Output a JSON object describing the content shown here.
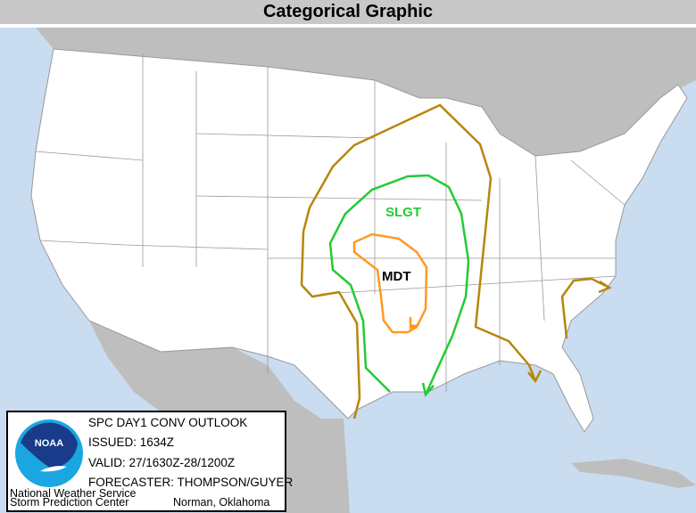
{
  "header": {
    "title": "Categorical Graphic"
  },
  "map": {
    "labels": {
      "slight": "SLGT",
      "moderate": "MDT"
    },
    "colors": {
      "tstm": "#b8860b",
      "slight": "#22cc33",
      "moderate": "#ff9922",
      "water": "#c9dcf0",
      "land": "#ffffff",
      "foreign": "#bebebe"
    }
  },
  "legend": {
    "product": "SPC DAY1 CONV OUTLOOK",
    "issued": "ISSUED: 1634Z",
    "valid": "VALID: 27/1630Z-28/1200Z",
    "forecaster": "FORECASTER: THOMPSON/GUYER",
    "agency_line1": "National Weather Service",
    "agency_line2": "Storm Prediction Center",
    "location": "Norman, Oklahoma",
    "logo_text": "NOAA"
  }
}
